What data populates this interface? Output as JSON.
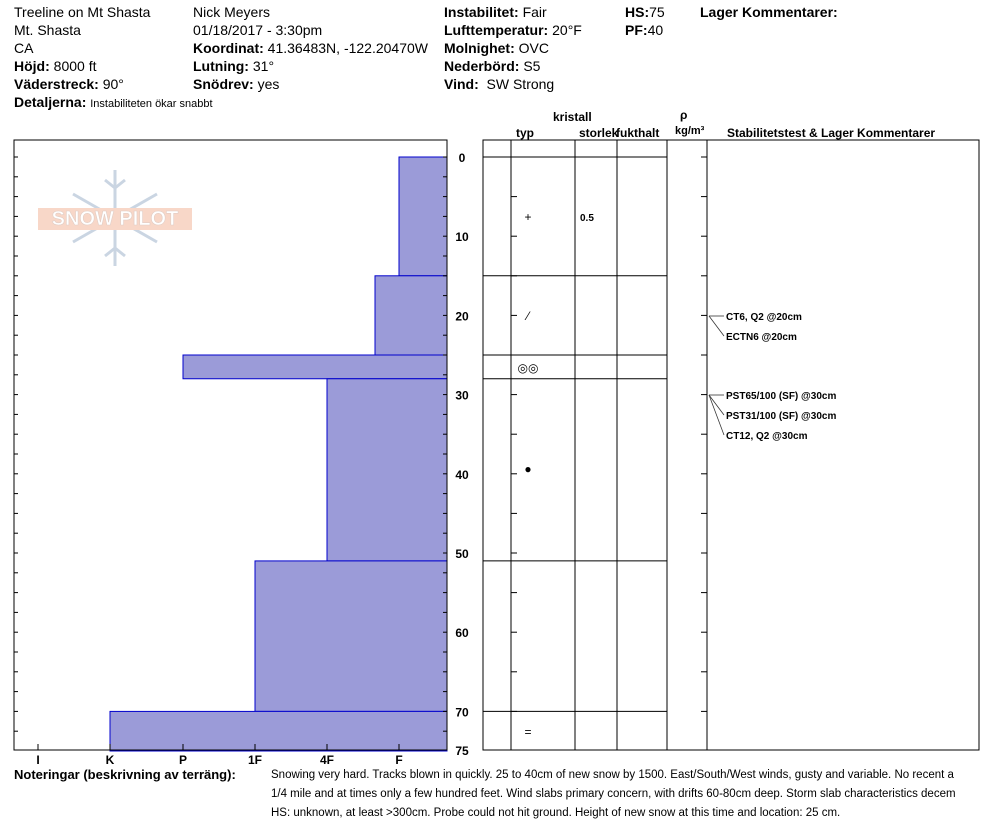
{
  "header": {
    "location": "Treeline on Mt Shasta",
    "region": "Mt. Shasta",
    "state": "CA",
    "elevation": {
      "label": "Höjd:",
      "value": "8000 ft"
    },
    "aspect": {
      "label": "Väderstreck:",
      "value": "90°"
    },
    "details": {
      "label": "Detaljerna:",
      "value": "Instabiliteten ökar snabbt"
    },
    "observer": "Nick Meyers",
    "datetime": "01/18/2017 - 3:30pm",
    "coordinates": {
      "label": "Koordinat:",
      "value": "41.36483N, -122.20470W"
    },
    "slope": {
      "label": "Lutning:",
      "value": "31°"
    },
    "wind_loading": {
      "label": "Snödrev:",
      "value": "yes"
    },
    "instability": {
      "label": "Instabilitet:",
      "value": "Fair"
    },
    "air_temp": {
      "label": "Lufttemperatur:",
      "value": "20°F"
    },
    "sky": {
      "label": "Molnighet:",
      "value": "OVC"
    },
    "precip": {
      "label": "Nederbörd:",
      "value": "S5"
    },
    "wind": {
      "label": "Vind:",
      "value": "SW Strong"
    },
    "hs": {
      "label": "HS:",
      "value": "75"
    },
    "pf": {
      "label": "PF:",
      "value": "40"
    },
    "layer_comments_title": "Lager Kommentarer:"
  },
  "logo_text": "SNOW PILOT",
  "columns": {
    "crystal": "kristall",
    "type": "typ",
    "size": "storlek",
    "moisture": "fukthalt",
    "rho": "ρ",
    "density_unit": "kg/m³",
    "stability": "Stabilitetstest & Lager Kommentarer"
  },
  "depth_ticks": [
    "0",
    "10",
    "20",
    "30",
    "40",
    "50",
    "60",
    "70",
    "75"
  ],
  "hardness_labels": [
    "I",
    "K",
    "P",
    "1F",
    "4F",
    "F"
  ],
  "hardness_profile": [
    {
      "from": 0,
      "to": 15,
      "hardness": "F"
    },
    {
      "from": 15,
      "to": 25,
      "hardness": "F/4F"
    },
    {
      "from": 25,
      "to": 28,
      "hardness": "P+"
    },
    {
      "from": 28,
      "to": 51,
      "hardness": "4F"
    },
    {
      "from": 51,
      "to": 70,
      "hardness": "1F"
    },
    {
      "from": 70,
      "to": 75,
      "hardness": "K"
    }
  ],
  "layers": [
    {
      "grain": "+",
      "size": "0.5"
    },
    {
      "grain": "⁄",
      "size": ""
    },
    {
      "grain": "◎◎",
      "size": ""
    },
    {
      "grain": "●",
      "size": ""
    },
    {
      "grain": "",
      "size": ""
    },
    {
      "grain": "=",
      "size": ""
    }
  ],
  "tests": [
    {
      "text": "CT6, Q2 @20cm"
    },
    {
      "text": "ECTN6 @20cm"
    },
    {
      "text": "PST65/100 (SF) @30cm"
    },
    {
      "text": "PST31/100 (SF) @30cm"
    },
    {
      "text": "CT12, Q2 @30cm"
    }
  ],
  "notes": {
    "label": "Noteringar (beskrivning av terräng):",
    "lines": [
      "Snowing very hard. Tracks blown in quickly. 25 to 40cm of new snow by 1500. East/South/West winds, gusty and variable. No recent a",
      "1/4 mile and at times only a few hundred feet. Wind slabs primary concern, with drifts 60-80cm deep. Storm slab characteristics decem",
      "HS: unknown, at least >300cm. Probe could not hit ground. Height of new snow at this time and location: 25 cm."
    ]
  },
  "colors": {
    "profile_fill": "#9b9bd8",
    "profile_edge": "#0000cc"
  }
}
